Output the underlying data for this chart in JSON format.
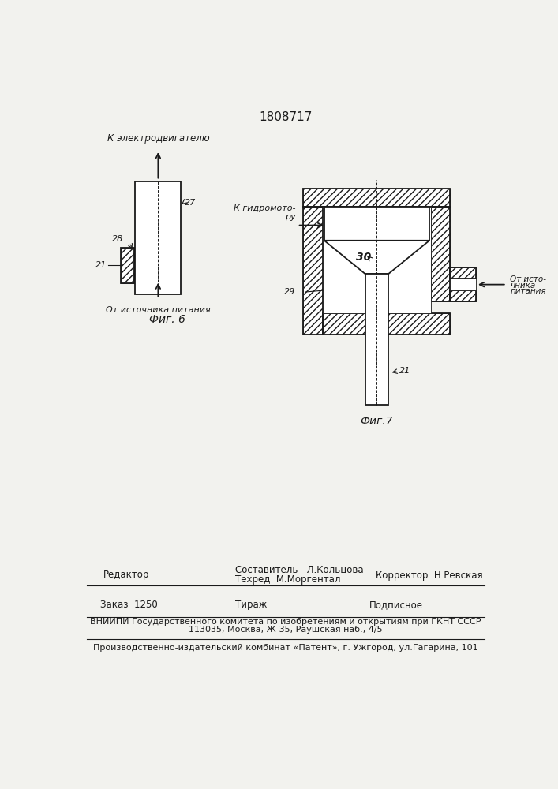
{
  "title": "1808717",
  "bg_color": "#f2f2ee",
  "line_color": "#1a1a1a",
  "fig6_label": "Фиг. 6",
  "fig7_label": "Фиг.7",
  "text_electromotor": "К электродвигателю",
  "text_hydromotor": "К гидромото-\nру",
  "text_source_fig6": "От источника питания",
  "text_source_fig7_line1": "От исто-",
  "text_source_fig7_line2": "чника",
  "text_source_fig7_line3": "питания",
  "label_21": "21",
  "label_27": "27",
  "label_28": "28",
  "label_29": "29",
  "label_30": "30",
  "footer_editor": "Редактор",
  "footer_compiler": "Составитель   Л.Кольцова",
  "footer_techred": "Техред  М.Моргентал",
  "footer_corrector": "Корректор  Н.Ревская",
  "footer_order": "Заказ  1250",
  "footer_tirazh": "Тираж",
  "footer_podpisnoe": "Подписное",
  "footer_vniiipi": "ВНИИПИ Государственного комитета по изобретениям и открытиям при ГКНТ СССР",
  "footer_address": "113035, Москва, Ж-35, Раушская наб., 4/5",
  "footer_publisher": "Производственно-издательский комбинат «Патент», г. Ужгород, ул.Гагарина, 101"
}
